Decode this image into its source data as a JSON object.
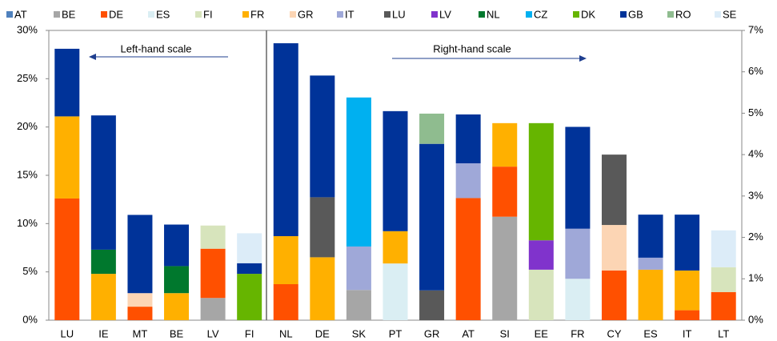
{
  "chart_data": [
    {
      "type": "bar",
      "stacked": true,
      "annotation": "Left-hand scale",
      "categories": [
        "LU",
        "IE",
        "MT",
        "BE",
        "LV",
        "FI"
      ],
      "ylim": [
        0,
        30
      ],
      "yticks": [
        {
          "value": 0,
          "label": "0%"
        },
        {
          "value": 5,
          "label": "5%"
        },
        {
          "value": 10,
          "label": "10%"
        },
        {
          "value": 15,
          "label": "15%"
        },
        {
          "value": 20,
          "label": "20%"
        },
        {
          "value": 25,
          "label": "25%"
        },
        {
          "value": 30,
          "label": "30%"
        }
      ],
      "series": [
        {
          "name": "AT",
          "color": "#4f81bd",
          "values": [
            null,
            null,
            null,
            null,
            null,
            null
          ]
        },
        {
          "name": "BE",
          "color": "#a6a6a6",
          "values": [
            null,
            null,
            null,
            null,
            2.3,
            null
          ]
        },
        {
          "name": "DE",
          "color": "#ff5000",
          "values": [
            12.6,
            null,
            1.4,
            null,
            5.1,
            null
          ]
        },
        {
          "name": "ES",
          "color": "#daeef3",
          "values": [
            null,
            null,
            null,
            null,
            null,
            null
          ]
        },
        {
          "name": "FI",
          "color": "#d7e4bc",
          "values": [
            null,
            null,
            null,
            null,
            2.4,
            null
          ]
        },
        {
          "name": "FR",
          "color": "#ffb000",
          "values": [
            8.5,
            4.8,
            null,
            2.8,
            null,
            null
          ]
        },
        {
          "name": "GR",
          "color": "#fcd5b4",
          "values": [
            null,
            null,
            1.4,
            null,
            null,
            null
          ]
        },
        {
          "name": "IT",
          "color": "#9fa8d8",
          "values": [
            null,
            null,
            null,
            null,
            null,
            null
          ]
        },
        {
          "name": "LU",
          "color": "#595959",
          "values": [
            null,
            null,
            null,
            null,
            null,
            null
          ]
        },
        {
          "name": "LV",
          "color": "#8033cc",
          "values": [
            null,
            null,
            null,
            null,
            null,
            null
          ]
        },
        {
          "name": "NL",
          "color": "#00782d",
          "values": [
            null,
            2.5,
            null,
            2.8,
            null,
            null
          ]
        },
        {
          "name": "CZ",
          "color": "#00b0f0",
          "values": [
            null,
            null,
            null,
            null,
            null,
            null
          ]
        },
        {
          "name": "DK",
          "color": "#66b500",
          "values": [
            null,
            null,
            null,
            null,
            null,
            4.8
          ]
        },
        {
          "name": "GB",
          "color": "#003399",
          "values": [
            7.0,
            13.9,
            8.1,
            4.3,
            null,
            1.1
          ]
        },
        {
          "name": "RO",
          "color": "#8fbc8f",
          "values": [
            null,
            null,
            null,
            null,
            null,
            null
          ]
        },
        {
          "name": "SE",
          "color": "#dcecf8",
          "values": [
            null,
            null,
            null,
            null,
            null,
            3.1
          ]
        }
      ]
    },
    {
      "type": "bar",
      "stacked": true,
      "annotation": "Right-hand scale",
      "categories": [
        "NL",
        "DE",
        "SK",
        "PT",
        "GR",
        "AT",
        "SI",
        "EE",
        "FR",
        "CY",
        "ES",
        "IT",
        "LT"
      ],
      "y2lim": [
        0,
        7
      ],
      "y2ticks": [
        {
          "value": 0,
          "label": "0%"
        },
        {
          "value": 1,
          "label": "1%"
        },
        {
          "value": 2,
          "label": "2%"
        },
        {
          "value": 3,
          "label": "3%"
        },
        {
          "value": 4,
          "label": "4%"
        },
        {
          "value": 5,
          "label": "5%"
        },
        {
          "value": 6,
          "label": "6%"
        },
        {
          "value": 7,
          "label": "7%"
        }
      ],
      "series": [
        {
          "color": "#4f81bd",
          "values": [
            null,
            null,
            null,
            null,
            null,
            null,
            null,
            null,
            null,
            null,
            null,
            null,
            null
          ]
        },
        {
          "color": "#a6a6a6",
          "values": [
            null,
            null,
            0.73,
            null,
            null,
            null,
            2.5,
            null,
            null,
            null,
            null,
            null,
            null
          ]
        },
        {
          "color": "#ff5000",
          "values": [
            0.87,
            null,
            null,
            null,
            null,
            2.95,
            1.21,
            null,
            null,
            1.2,
            null,
            0.24,
            0.68
          ]
        },
        {
          "color": "#daeef3",
          "values": [
            null,
            null,
            null,
            1.37,
            null,
            null,
            null,
            null,
            1.0,
            null,
            null,
            null,
            null
          ]
        },
        {
          "color": "#d7e4bc",
          "values": [
            null,
            null,
            null,
            null,
            null,
            null,
            null,
            1.22,
            null,
            null,
            null,
            null,
            0.6
          ]
        },
        {
          "color": "#ffb000",
          "values": [
            1.16,
            1.52,
            null,
            0.78,
            null,
            null,
            1.05,
            null,
            null,
            null,
            1.22,
            0.96,
            null
          ]
        },
        {
          "color": "#fcd5b4",
          "values": [
            null,
            null,
            null,
            null,
            null,
            null,
            null,
            null,
            null,
            1.1,
            null,
            null,
            null
          ]
        },
        {
          "color": "#9fa8d8",
          "values": [
            null,
            null,
            1.05,
            null,
            null,
            0.84,
            null,
            null,
            1.21,
            null,
            0.29,
            null,
            null
          ]
        },
        {
          "color": "#595959",
          "values": [
            null,
            1.45,
            null,
            null,
            0.72,
            null,
            null,
            null,
            null,
            1.7,
            null,
            null,
            null
          ]
        },
        {
          "color": "#8033cc",
          "values": [
            null,
            null,
            null,
            null,
            null,
            null,
            null,
            0.71,
            null,
            null,
            null,
            null,
            null
          ]
        },
        {
          "color": "#00782d",
          "values": [
            null,
            null,
            null,
            null,
            null,
            null,
            null,
            null,
            null,
            null,
            null,
            null,
            null
          ]
        },
        {
          "color": "#00b0f0",
          "values": [
            null,
            null,
            3.6,
            null,
            null,
            null,
            null,
            null,
            null,
            null,
            null,
            null,
            null
          ]
        },
        {
          "color": "#66b500",
          "values": [
            null,
            null,
            null,
            null,
            null,
            null,
            null,
            2.83,
            null,
            null,
            null,
            null,
            null
          ]
        },
        {
          "color": "#003399",
          "values": [
            4.66,
            2.94,
            null,
            2.9,
            3.54,
            1.18,
            null,
            null,
            2.46,
            null,
            1.04,
            1.35,
            null
          ]
        },
        {
          "color": "#8fbc8f",
          "values": [
            null,
            null,
            null,
            null,
            0.73,
            null,
            null,
            null,
            null,
            null,
            null,
            null,
            null
          ]
        },
        {
          "color": "#dcecf8",
          "values": [
            null,
            null,
            null,
            null,
            null,
            null,
            null,
            null,
            null,
            null,
            null,
            null,
            0.89
          ]
        }
      ]
    }
  ]
}
